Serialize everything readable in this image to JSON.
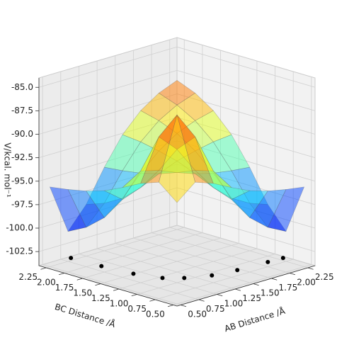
{
  "chart_data": {
    "type": "surface3d",
    "xlabel": "AB Distance /Å",
    "ylabel": "BC Distance /Å",
    "zlabel": "V/kcal. mol⁻¹",
    "x": [
      0.5,
      0.75,
      1.0,
      1.25,
      1.5,
      1.75,
      2.0,
      2.25
    ],
    "y": [
      0.5,
      0.75,
      1.0,
      1.25,
      1.5,
      1.75,
      2.0,
      2.25
    ],
    "z": [
      [
        -93.2,
        -91.6,
        -92.3,
        -93.3,
        -94.2,
        -94.8,
        -95.2,
        -95.5
      ],
      [
        -91.6,
        -85.0,
        -87.9,
        -92.1,
        -95.7,
        -98.2,
        -99.8,
        -100.8
      ],
      [
        -92.3,
        -87.9,
        -89.8,
        -92.6,
        -95.0,
        -96.7,
        -97.8,
        -98.5
      ],
      [
        -93.3,
        -92.1,
        -92.6,
        -93.4,
        -94.1,
        -94.6,
        -94.9,
        -95.1
      ],
      [
        -94.2,
        -95.7,
        -95.0,
        -94.1,
        -93.3,
        -92.8,
        -92.4,
        -92.2
      ],
      [
        -94.8,
        -98.2,
        -96.7,
        -94.6,
        -92.8,
        -91.5,
        -90.7,
        -90.2
      ],
      [
        -95.2,
        -99.8,
        -97.8,
        -94.9,
        -92.4,
        -90.7,
        -89.6,
        -88.9
      ],
      [
        -95.5,
        -100.8,
        -98.5,
        -95.1,
        -92.2,
        -90.2,
        -88.9,
        -88.1
      ]
    ],
    "colormap": "jet",
    "trajectory": {
      "color": "#000000",
      "x": [
        0.74,
        0.76,
        0.8,
        0.9,
        1.05,
        1.3,
        1.6,
        2.0,
        2.2
      ],
      "y": [
        2.2,
        1.8,
        1.4,
        1.1,
        0.95,
        0.82,
        0.77,
        0.75,
        0.74
      ],
      "z": [
        -103.5,
        -103.5,
        -103.5,
        -103.5,
        -103.5,
        -103.5,
        -103.5,
        -103.5,
        -103.5
      ]
    },
    "xlim": [
      0.45,
      2.35
    ],
    "ylim": [
      0.45,
      2.35
    ],
    "zlim": [
      -104,
      -84
    ],
    "xticks": [
      {
        "value": 0.5,
        "label": "0.50"
      },
      {
        "value": 0.75,
        "label": "0.75"
      },
      {
        "value": 1.0,
        "label": "1.00"
      },
      {
        "value": 1.25,
        "label": "1.25"
      },
      {
        "value": 1.5,
        "label": "1.50"
      },
      {
        "value": 1.75,
        "label": "1.75"
      },
      {
        "value": 2.0,
        "label": "2.00"
      },
      {
        "value": 2.25,
        "label": "2.25"
      }
    ],
    "yticks": [
      {
        "value": 0.5,
        "label": "0.50"
      },
      {
        "value": 0.75,
        "label": "0.75"
      },
      {
        "value": 1.0,
        "label": "1.00"
      },
      {
        "value": 1.25,
        "label": "1.25"
      },
      {
        "value": 1.5,
        "label": "1.50"
      },
      {
        "value": 1.75,
        "label": "1.75"
      },
      {
        "value": 2.0,
        "label": "2.00"
      },
      {
        "value": 2.25,
        "label": "2.25"
      }
    ],
    "zticks": [
      {
        "value": -85,
        "label": "-85.0"
      },
      {
        "value": -87.5,
        "label": "-87.5"
      },
      {
        "value": -90,
        "label": "-90.0"
      },
      {
        "value": -92.5,
        "label": "-92.5"
      },
      {
        "value": -95,
        "label": "-95.0"
      },
      {
        "value": -97.5,
        "label": "-97.5"
      },
      {
        "value": -100,
        "label": "-100.0"
      },
      {
        "value": -102.5,
        "label": "-102.5"
      }
    ],
    "grid": true
  }
}
